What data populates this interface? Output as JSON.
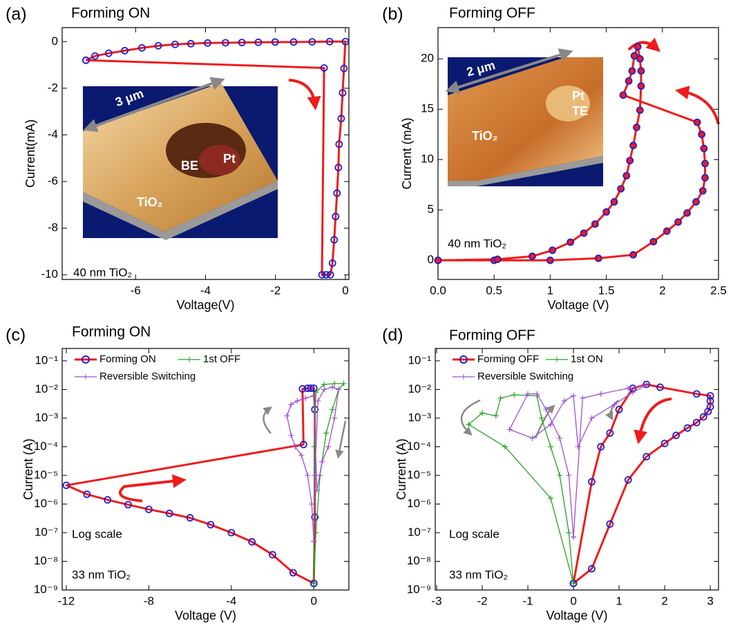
{
  "chart_data": [
    {
      "type": "line",
      "panel_label": "(a)",
      "title": "Forming ON",
      "xlabel": "Voltage(V)",
      "ylabel": "Current(mA)",
      "annotations": [
        "40 nm TiO₂"
      ],
      "inset_labels": [
        "3 μm",
        "BE",
        "Pt",
        "TiO₂"
      ],
      "xlim": [
        -8.1,
        0.1
      ],
      "ylim": [
        -10.2,
        0.6
      ],
      "xticks": [
        -6,
        -4,
        -2,
        0
      ],
      "yticks": [
        -10,
        -8,
        -6,
        -4,
        -2,
        0
      ],
      "yscale": "linear",
      "grid": false,
      "series": [
        {
          "color": "#ee1c1c",
          "marker": "circle",
          "marker_color": "#1f1fd0",
          "x": [
            -7.42,
            -7.16,
            -6.77,
            -6.31,
            -5.82,
            -5.35,
            -4.87,
            -4.42,
            -3.94,
            -3.43,
            -2.96,
            -2.49,
            -2.01,
            -1.48,
            -0.95,
            -0.45,
            0,
            -0.04,
            -0.08,
            -0.12,
            -0.18,
            -0.2,
            -0.24,
            -0.28,
            -0.32,
            -0.37,
            -0.43,
            -0.55,
            -0.67,
            -0.61,
            -7.42
          ],
          "values": [
            -0.8,
            -0.62,
            -0.5,
            -0.39,
            -0.27,
            -0.18,
            -0.12,
            -0.09,
            -0.06,
            -0.05,
            -0.04,
            -0.03,
            -0.02,
            -0.02,
            -0.01,
            0,
            0,
            -1.15,
            -2.2,
            -3.3,
            -4.4,
            -5.4,
            -6.5,
            -7.5,
            -8.5,
            -9.5,
            -10,
            -10,
            -10,
            -1.13,
            -0.8
          ]
        }
      ]
    },
    {
      "type": "line",
      "panel_label": "(b)",
      "title": "Forming OFF",
      "xlabel": "Voltage (V)",
      "ylabel": "Current (mA)",
      "annotations": [
        "40 nm TiO₂"
      ],
      "inset_labels": [
        "2 μm",
        "Pt",
        "TE",
        "TiO₂"
      ],
      "xlim": [
        0,
        2.5
      ],
      "ylim": [
        -1.9,
        23.1
      ],
      "xticks": [
        {
          "value": 0,
          "label": "0.0"
        },
        0.5,
        1,
        1.5,
        2,
        2.5
      ],
      "yticks": [
        0,
        5,
        10,
        15,
        20
      ],
      "yscale": "linear",
      "grid": false,
      "series": [
        {
          "color": "#ee1c1c",
          "marker": "circle",
          "marker_color": "#1f1fd0",
          "marker_face": "#ee1c1c",
          "x": [
            0,
            0.5,
            1,
            1.43,
            1.74,
            1.92,
            2.04,
            2.14,
            2.22,
            2.3,
            2.36,
            2.38,
            2.38,
            2.37,
            2.35,
            2.31,
            1.65,
            1.7,
            1.73,
            1.75,
            1.78,
            1.8,
            1.81,
            1.81,
            1.8,
            1.77,
            1.74,
            1.71,
            1.68,
            1.63,
            1.57,
            1.5,
            1.4,
            1.3,
            1.18,
            1.02,
            0.84,
            0.53,
            0
          ],
          "values": [
            0,
            0,
            0,
            0.2,
            0.55,
            1.85,
            2.9,
            3.8,
            4.7,
            5.8,
            6.9,
            8.2,
            9.6,
            11.1,
            12.5,
            13.7,
            16.4,
            17.8,
            18.8,
            20.3,
            21.2,
            20,
            18.8,
            17.3,
            14.9,
            13.2,
            11.4,
            9.9,
            8.4,
            7.1,
            5.8,
            4.8,
            3.6,
            2.7,
            1.8,
            1.0,
            0.4,
            0.1,
            0
          ]
        }
      ]
    },
    {
      "type": "line",
      "panel_label": "(c)",
      "title": "Forming ON",
      "xlabel": "Voltage (V)",
      "ylabel": "Current (A)",
      "annotations": [
        "Log scale",
        "33 nm TiO₂"
      ],
      "xlim": [
        -12.2,
        1.7
      ],
      "ylim": [
        1e-09,
        0.27
      ],
      "xticks": [
        -12,
        -8,
        -4,
        0
      ],
      "yscale": "log",
      "grid": false,
      "legend": "upper left",
      "yticks": [
        {
          "value": 1e-09,
          "label": "10⁻⁹"
        },
        {
          "value": 1e-08,
          "label": "10⁻⁸"
        },
        {
          "value": 1e-07,
          "label": "10⁻⁷"
        },
        {
          "value": 1e-06,
          "label": "10⁻⁶"
        },
        {
          "value": 1e-05,
          "label": "10⁻⁵"
        },
        {
          "value": 0.0001,
          "label": "10⁻⁴"
        },
        {
          "value": 0.001,
          "label": "10⁻³"
        },
        {
          "value": 0.01,
          "label": "10⁻²"
        },
        {
          "value": 0.1,
          "label": "10⁻¹"
        }
      ],
      "series": [
        {
          "name": "Forming ON",
          "color": "#ee1c1c",
          "marker": "circle",
          "marker_color": "#1f1fd0",
          "x": [
            0,
            0.05,
            0.05,
            0,
            -0.15,
            -0.3,
            -0.55,
            -0.5,
            -12,
            -11,
            -10,
            -9,
            -8,
            -7,
            -6,
            -5,
            -4,
            -3,
            -2,
            -1,
            0
          ],
          "values": [
            1.7e-09,
            3.5e-07,
            0.002,
            0.011,
            0.011,
            0.011,
            0.0105,
            0.00012,
            4.5e-06,
            2.2e-06,
            1.4e-06,
            9.5e-07,
            6.5e-07,
            4.7e-07,
            3.3e-07,
            1.9e-07,
            1e-07,
            4.8e-08,
            1.7e-08,
            4e-09,
            1.7e-09
          ]
        },
        {
          "name": "1st OFF",
          "color": "#22a322",
          "marker": "plus",
          "marker_color": "#22a322",
          "x": [
            0,
            0.1,
            0.3,
            0.6,
            0.9,
            1.2,
            1.45,
            1.0,
            0.5,
            0.1,
            0.02,
            0
          ],
          "values": [
            1.7e-09,
            1e-07,
            1e-05,
            0.0003,
            0.002,
            0.01,
            0.016,
            0.016,
            0.015,
            0.008,
            0.0001,
            1.7e-09
          ]
        },
        {
          "name": "Reversible Switching",
          "color": "#9b4fd6",
          "marker": "plus",
          "marker_color": "#9b4fd6",
          "x": [
            0,
            -0.1,
            -0.3,
            -0.6,
            -0.9,
            -1.1,
            -1.3,
            -1.1,
            -0.8,
            -0.4,
            0,
            0.15,
            0.4,
            0.7,
            1.0,
            1.2,
            0.9,
            0.5,
            0.2,
            0.05,
            0
          ],
          "values": [
            5e-08,
            1e-06,
            1e-05,
            5e-05,
            0.0001,
            0.00025,
            0.0012,
            0.003,
            0.004,
            0.005,
            0.006,
            3e-06,
            3e-05,
            0.0001,
            0.001,
            0.01,
            0.012,
            0.01,
            0.004,
            1e-05,
            5e-08
          ]
        }
      ]
    },
    {
      "type": "line",
      "panel_label": "(d)",
      "title": "Forming OFF",
      "xlabel": "Voltage (V)",
      "ylabel": "Current (A)",
      "annotations": [
        "Log scale",
        "33 nm TiO₂"
      ],
      "xlim": [
        -3.03,
        3.18
      ],
      "ylim": [
        1e-09,
        0.27
      ],
      "xticks": [
        -3,
        -2,
        -1,
        0,
        1,
        2,
        3
      ],
      "yscale": "log",
      "grid": false,
      "legend": "upper left",
      "yticks": [
        {
          "value": 1e-09,
          "label": "10⁻⁹"
        },
        {
          "value": 1e-08,
          "label": "10⁻⁸"
        },
        {
          "value": 1e-07,
          "label": "10⁻⁷"
        },
        {
          "value": 1e-06,
          "label": "10⁻⁶"
        },
        {
          "value": 1e-05,
          "label": "10⁻⁵"
        },
        {
          "value": 0.0001,
          "label": "10⁻⁴"
        },
        {
          "value": 0.001,
          "label": "10⁻³"
        },
        {
          "value": 0.01,
          "label": "10⁻²"
        },
        {
          "value": 0.1,
          "label": "10⁻¹"
        }
      ],
      "series": [
        {
          "name": "Forming OFF",
          "color": "#ee1c1c",
          "marker": "circle",
          "marker_color": "#1f1fd0",
          "x": [
            0,
            0.4,
            0.8,
            1.2,
            1.6,
            2.0,
            2.25,
            2.5,
            2.7,
            2.85,
            2.95,
            3.0,
            3.0,
            3.0,
            2.7,
            1.9,
            1.6,
            1.3,
            1.0,
            0.8,
            0.6,
            0.4,
            0
          ],
          "values": [
            1.7e-09,
            5.5e-09,
            2e-07,
            7e-06,
            4.5e-05,
            0.00013,
            0.00025,
            0.00045,
            0.0007,
            0.0011,
            0.0017,
            0.0025,
            0.004,
            0.006,
            0.007,
            0.012,
            0.015,
            0.011,
            0.002,
            0.0003,
            0.0001,
            6e-06,
            1.7e-09
          ]
        },
        {
          "name": "1st ON",
          "color": "#22a322",
          "marker": "plus",
          "marker_color": "#22a322",
          "x": [
            0,
            -0.1,
            -0.3,
            -0.5,
            -0.7,
            -0.8,
            -1.3,
            -1.6,
            -1.7,
            -2.0,
            -2.3,
            -1.5,
            -0.5,
            0
          ],
          "values": [
            1.7e-09,
            1e-07,
            1e-05,
            0.0001,
            0.001,
            0.006,
            0.0065,
            0.005,
            0.0012,
            0.0015,
            0.0006,
            0.0001,
            1.6e-06,
            1.7e-09
          ]
        },
        {
          "name": "Reversible Switching",
          "color": "#9b4fd6",
          "marker": "plus",
          "marker_color": "#9b4fd6",
          "x": [
            0,
            -0.1,
            -0.3,
            -0.6,
            -0.8,
            -1.0,
            -1.4,
            -0.9,
            -0.5,
            -0.2,
            0,
            0.1,
            0.4,
            0.9,
            1.3,
            1.6,
            1.2,
            0.6,
            0.2,
            0
          ],
          "values": [
            7e-08,
            1e-05,
            0.0002,
            0.002,
            0.007,
            0.007,
            0.0004,
            0.0002,
            0.0006,
            0.004,
            0.006,
            0.0001,
            0.001,
            0.003,
            0.008,
            0.014,
            0.011,
            0.007,
            0.005,
            7e-08
          ]
        }
      ]
    }
  ]
}
